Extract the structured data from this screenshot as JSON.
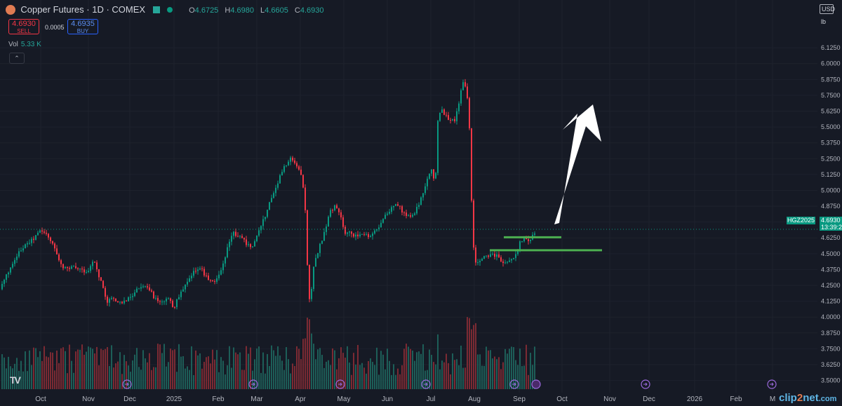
{
  "legend": {
    "symbol": "Copper Futures · 1D · COMEX",
    "open_label": "O",
    "open": "4.6725",
    "high_label": "H",
    "high": "4.6980",
    "low_label": "L",
    "low": "4.6605",
    "close_label": "C",
    "close": "4.6930"
  },
  "trade": {
    "sell_price": "4.6930",
    "sell_label": "SELL",
    "spread": "0.0005",
    "buy_price": "4.6935",
    "buy_label": "BUY"
  },
  "volume": {
    "label": "Vol",
    "value": "5.33 K"
  },
  "axis": {
    "currency": "USD",
    "unit": "lb"
  },
  "last_price": {
    "symbol": "HGZ2025",
    "price": "4.6930",
    "countdown": "13:39:2"
  },
  "watermark": {
    "part1": "clip",
    "part2": "2",
    "part3": "net",
    "suffix": ".com"
  },
  "tv_logo": "TV",
  "colors": {
    "up": "#089981",
    "down": "#f23645",
    "background": "#161a25",
    "grid": "#1e222d",
    "annotation": "#4caf50",
    "arrow": "#ffffff"
  },
  "chart_data": {
    "type": "candlestick",
    "y_ticks": [
      "3.5000",
      "3.6250",
      "3.7500",
      "3.8750",
      "4.0000",
      "4.1250",
      "4.2500",
      "4.3750",
      "4.5000",
      "4.6250",
      "4.7500",
      "4.8750",
      "5.0000",
      "5.1250",
      "5.2500",
      "5.3750",
      "5.5000",
      "5.6250",
      "5.7500",
      "5.8750",
      "6.0000",
      "6.1250"
    ],
    "ylim": [
      3.47,
      6.17
    ],
    "x_labels": [
      "Oct",
      "Nov",
      "Dec",
      "2025",
      "Feb",
      "Mar",
      "Apr",
      "May",
      "Jun",
      "Jul",
      "Aug",
      "Sep",
      "Oct",
      "Nov",
      "Dec",
      "2026",
      "Feb",
      "M"
    ],
    "points": [
      [
        0,
        4.22
      ],
      [
        4,
        4.27
      ],
      [
        12,
        4.36
      ],
      [
        18,
        4.41
      ],
      [
        24,
        4.48
      ],
      [
        32,
        4.55
      ],
      [
        40,
        4.58
      ],
      [
        48,
        4.62
      ],
      [
        54,
        4.66
      ],
      [
        58,
        4.68
      ],
      [
        64,
        4.66
      ],
      [
        70,
        4.63
      ],
      [
        78,
        4.54
      ],
      [
        84,
        4.46
      ],
      [
        90,
        4.39
      ],
      [
        96,
        4.38
      ],
      [
        104,
        4.39
      ],
      [
        112,
        4.38
      ],
      [
        118,
        4.37
      ],
      [
        126,
        4.36
      ],
      [
        134,
        4.46
      ],
      [
        140,
        4.34
      ],
      [
        146,
        4.25
      ],
      [
        152,
        4.12
      ],
      [
        158,
        4.15
      ],
      [
        164,
        4.13
      ],
      [
        170,
        4.11
      ],
      [
        176,
        4.12
      ],
      [
        182,
        4.14
      ],
      [
        188,
        4.17
      ],
      [
        194,
        4.21
      ],
      [
        200,
        4.24
      ],
      [
        206,
        4.26
      ],
      [
        212,
        4.23
      ],
      [
        218,
        4.17
      ],
      [
        224,
        4.12
      ],
      [
        230,
        4.11
      ],
      [
        236,
        4.13
      ],
      [
        242,
        4.14
      ],
      [
        248,
        4.07
      ],
      [
        254,
        4.16
      ],
      [
        260,
        4.21
      ],
      [
        266,
        4.26
      ],
      [
        272,
        4.31
      ],
      [
        278,
        4.37
      ],
      [
        284,
        4.4
      ],
      [
        290,
        4.35
      ],
      [
        296,
        4.31
      ],
      [
        302,
        4.28
      ],
      [
        308,
        4.29
      ],
      [
        314,
        4.35
      ],
      [
        320,
        4.45
      ],
      [
        326,
        4.58
      ],
      [
        332,
        4.68
      ],
      [
        338,
        4.64
      ],
      [
        344,
        4.62
      ],
      [
        350,
        4.59
      ],
      [
        356,
        4.55
      ],
      [
        362,
        4.58
      ],
      [
        368,
        4.66
      ],
      [
        374,
        4.75
      ],
      [
        380,
        4.83
      ],
      [
        386,
        4.93
      ],
      [
        392,
        5.0
      ],
      [
        398,
        5.1
      ],
      [
        404,
        5.17
      ],
      [
        410,
        5.21
      ],
      [
        416,
        5.26
      ],
      [
        422,
        5.2
      ],
      [
        428,
        5.14
      ],
      [
        434,
        4.98
      ],
      [
        437,
        4.56
      ],
      [
        440,
        4.15
      ],
      [
        443,
        4.13
      ],
      [
        446,
        4.38
      ],
      [
        452,
        4.5
      ],
      [
        458,
        4.6
      ],
      [
        464,
        4.7
      ],
      [
        470,
        4.83
      ],
      [
        476,
        4.87
      ],
      [
        480,
        4.86
      ],
      [
        486,
        4.78
      ],
      [
        492,
        4.65
      ],
      [
        498,
        4.66
      ],
      [
        504,
        4.65
      ],
      [
        510,
        4.63
      ],
      [
        516,
        4.66
      ],
      [
        522,
        4.65
      ],
      [
        528,
        4.64
      ],
      [
        534,
        4.68
      ],
      [
        540,
        4.72
      ],
      [
        546,
        4.78
      ],
      [
        552,
        4.81
      ],
      [
        558,
        4.86
      ],
      [
        564,
        4.89
      ],
      [
        570,
        4.86
      ],
      [
        576,
        4.81
      ],
      [
        582,
        4.79
      ],
      [
        588,
        4.8
      ],
      [
        594,
        4.86
      ],
      [
        600,
        4.93
      ],
      [
        606,
        5.04
      ],
      [
        612,
        5.12
      ],
      [
        616,
        5.18
      ],
      [
        620,
        5.0
      ],
      [
        624,
        5.55
      ],
      [
        628,
        5.64
      ],
      [
        632,
        5.62
      ],
      [
        636,
        5.58
      ],
      [
        640,
        5.56
      ],
      [
        644,
        5.55
      ],
      [
        648,
        5.55
      ],
      [
        652,
        5.63
      ],
      [
        656,
        5.77
      ],
      [
        660,
        5.85
      ],
      [
        664,
        5.8
      ],
      [
        668,
        5.68
      ],
      [
        671,
        5.08
      ],
      [
        674,
        4.6
      ],
      [
        678,
        4.42
      ],
      [
        684,
        4.45
      ],
      [
        690,
        4.47
      ],
      [
        696,
        4.48
      ],
      [
        702,
        4.49
      ],
      [
        708,
        4.48
      ],
      [
        714,
        4.45
      ],
      [
        720,
        4.43
      ],
      [
        726,
        4.46
      ],
      [
        730,
        4.45
      ],
      [
        734,
        4.5
      ],
      [
        738,
        4.54
      ],
      [
        742,
        4.6
      ],
      [
        748,
        4.62
      ],
      [
        754,
        4.6
      ],
      [
        760,
        4.65
      ],
      [
        764,
        4.69
      ]
    ],
    "volume": [
      [
        "Oct",
        0.37
      ],
      [
        "Nov",
        0.33
      ],
      [
        "Dec",
        0.35
      ],
      [
        "2025",
        0.45
      ],
      [
        "Feb",
        0.4
      ],
      [
        "Mar",
        0.45
      ],
      [
        "Apr",
        1.0
      ],
      [
        "May",
        0.58
      ],
      [
        "Jun",
        0.42
      ],
      [
        "Jul",
        0.55
      ],
      [
        "Aug",
        0.7
      ],
      [
        "Sep",
        0.3
      ]
    ],
    "last_price": 4.693,
    "levels": [
      {
        "name": "upper-resistance",
        "y": 4.63
      },
      {
        "name": "lower-support",
        "y": 4.5275
      }
    ]
  }
}
